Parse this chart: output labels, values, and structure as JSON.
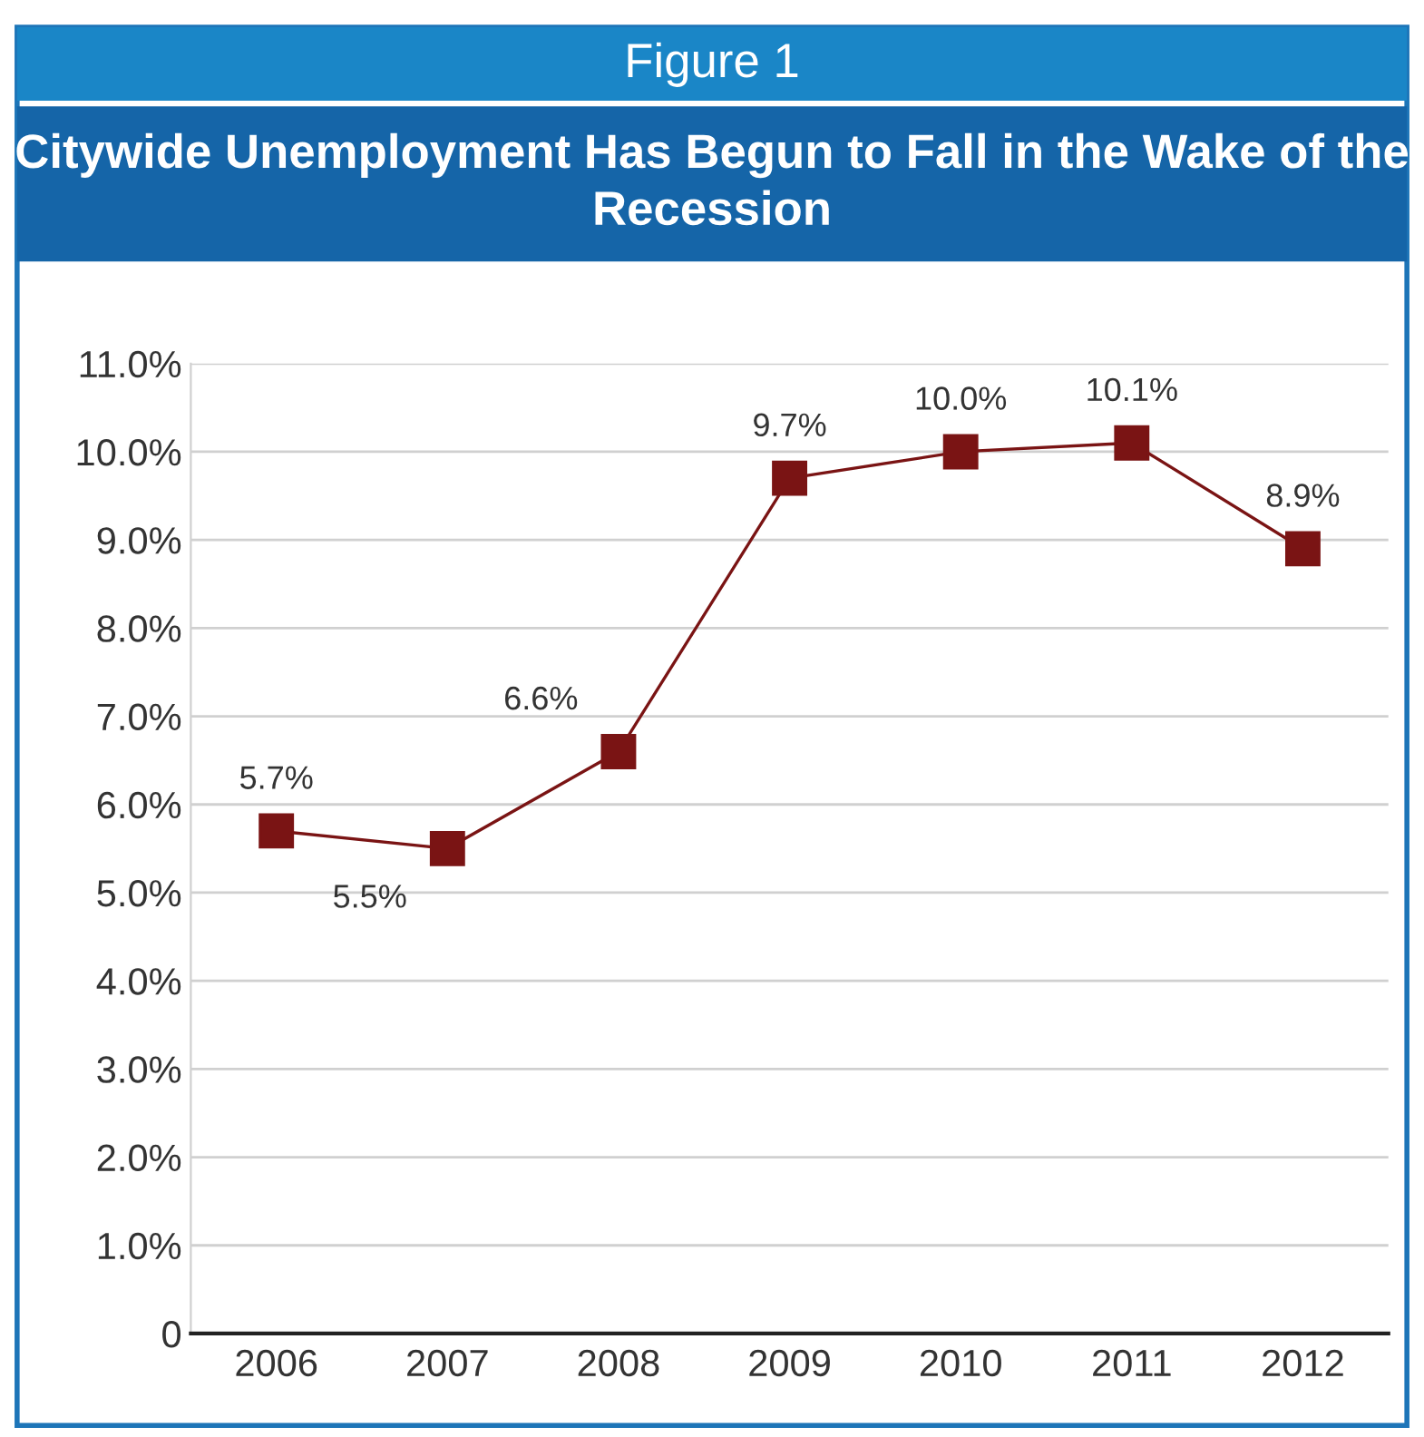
{
  "chart_data": {
    "type": "line",
    "subtitle": "Figure 1",
    "title": "Citywide Unemployment Has Begun to Fall in the Wake of the Recession",
    "categories": [
      "2006",
      "2007",
      "2008",
      "2009",
      "2010",
      "2011",
      "2012"
    ],
    "series": [
      {
        "color": "#7a1414",
        "values": [
          5.7,
          5.5,
          6.6,
          9.7,
          10.0,
          10.1,
          8.9
        ],
        "value_labels": [
          "5.7%",
          "5.5%",
          "6.6%",
          "9.7%",
          "10.0%",
          "10.1%",
          "8.9%"
        ]
      }
    ],
    "ylim": [
      0,
      11
    ],
    "yticks": [
      {
        "value": 0,
        "label": "0"
      },
      {
        "value": 1,
        "label": "1.0%"
      },
      {
        "value": 2,
        "label": "2.0%"
      },
      {
        "value": 3,
        "label": "3.0%"
      },
      {
        "value": 4,
        "label": "4.0%"
      },
      {
        "value": 5,
        "label": "5.0%"
      },
      {
        "value": 6,
        "label": "6.0%"
      },
      {
        "value": 7,
        "label": "7.0%"
      },
      {
        "value": 8,
        "label": "8.0%"
      },
      {
        "value": 9,
        "label": "9.0%"
      },
      {
        "value": 10,
        "label": "10.0%"
      },
      {
        "value": 11,
        "label": "11.0%"
      }
    ],
    "grid": "y",
    "marker": "square",
    "line_style": "solid"
  }
}
